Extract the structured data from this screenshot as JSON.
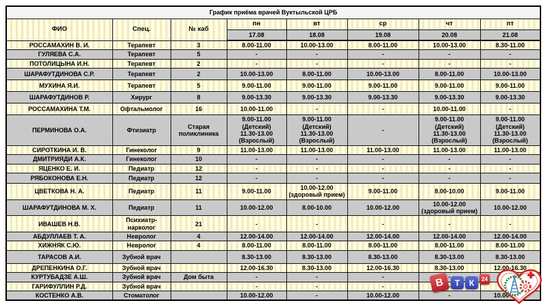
{
  "title": "График приёма врачей Вуктыльской ЦРБ",
  "table": {
    "col_headers": {
      "fio": "ФИО",
      "spec": "Спец.",
      "cab": "№ каб"
    },
    "days": [
      {
        "label": "пн",
        "date": "17.08"
      },
      {
        "label": "вт",
        "date": "18.08"
      },
      {
        "label": "ср",
        "date": "19.08"
      },
      {
        "label": "чт",
        "date": "20.08"
      },
      {
        "label": "пт",
        "date": "21.08"
      }
    ],
    "rows": [
      {
        "name": "РОССАМАХИН В. И.",
        "spec": "Терапевт",
        "cab": "3",
        "days": [
          "8.00-11.00",
          "10.00-13.00",
          "8.00-11.00",
          "10.00-13.00",
          "8.30-11.00"
        ]
      },
      {
        "name": "ГУЛЯЕВА С.А.",
        "spec": "Терапевт",
        "cab": "5",
        "days": [
          "-",
          "-",
          "-",
          "-",
          "-"
        ]
      },
      {
        "name": "ПОТОЛИЦЫНА И.Н.",
        "spec": "Терапевт",
        "cab": "2",
        "days": [
          "-",
          "-",
          "-",
          "-",
          "-"
        ]
      },
      {
        "name": "ШАРАФУТДИНОВА С.Р.",
        "spec": "Терапевт",
        "cab": "2",
        "days": [
          "10.00-13.00",
          "8.00-11.00",
          "10.00-13.00",
          "8.00-11.00",
          "10.00-13.00"
        ]
      },
      {
        "name": "МУХИНА Я.И.",
        "spec": "Терапевт",
        "cab": "5",
        "days": [
          "9.00-11.00",
          "9.00-11.00",
          "9.00-11.00",
          "9.00-11.00",
          "9.00-11.00"
        ]
      },
      {
        "name": "ШАРАФУТДИНОВ Р.",
        "spec": "Хирург",
        "cab": "8",
        "days": [
          "9.00-13.30",
          "9.00-13.30",
          "9.00-13.30",
          "9.00-13.30",
          "9.00-13.30"
        ]
      },
      {
        "name": "РОССАМАХИНА Т.М.",
        "spec": "Офтальмолог",
        "cab": "16",
        "days": [
          "10.00-11.00",
          "-",
          "-",
          "10.00-11.00",
          "-"
        ]
      },
      {
        "name": "ПЕРМИНОВА О.А.",
        "spec": "Фтизиатр",
        "cab": "Старая поликлиника",
        "days": [
          "9.00-11.00\n(Детский)\n11.30-13.00\n(Взрослый)",
          "9.00-11.00\n(Детский)\n11.30-13.00\n(Взрослый)",
          "-",
          "9.00-11.00\n(Детский)\n11.30-13.00\n(Взрослый)",
          "9.00-11.00\n(Детский)\n11.30-13.00\n(Взрослый)"
        ]
      },
      {
        "name": "СИРОТКИНА И. В.",
        "spec": "Гинеколог",
        "cab": "9",
        "days": [
          "11.00-13.00",
          "11.00-13.00",
          "11.00-13.00",
          "11.00-13.00",
          "11.00-13.00"
        ]
      },
      {
        "name": "ДМИТРИЯДИ А.К.",
        "spec": "Гинеколог",
        "cab": "10",
        "days": [
          "-",
          "-",
          "-",
          "-",
          "-"
        ]
      },
      {
        "name": "ЯЦЕНКО Е. И.",
        "spec": "Педиатр",
        "cab": "12",
        "days": [
          "-",
          "-",
          "-",
          "-",
          "-"
        ]
      },
      {
        "name": "РЯБОКОНОВА Е.Н.",
        "spec": "Педиатр",
        "cab": "12",
        "days": [
          "-",
          "-",
          "-",
          "-",
          "-"
        ]
      },
      {
        "name": "ЦВЕТКОВА Н. А.",
        "spec": "Педиатр",
        "cab": "11",
        "days": [
          "9.00-11.00",
          "10.00-12.00\n(здоровый прием)",
          "9.00-11.00",
          "8.00-10.00",
          "9.00-11.00"
        ]
      },
      {
        "name": "ШАРАФУТДИНОВА М. Х.",
        "spec": "Педиатр",
        "cab": "11",
        "days": [
          "10.00-12.00",
          "8.00-10.00",
          "10.00-12.00",
          "10.00-12.00\n(здоровый прием)",
          "10.00-12.00"
        ]
      },
      {
        "name": "ИВАШЕВ Н.В.",
        "spec": "Психиатр-нарколог",
        "cab": "21",
        "days": [
          "-",
          "-",
          "-",
          "-",
          "-"
        ]
      },
      {
        "name": "АБДУЛЛАЕВ Т. А.",
        "spec": "Невролог",
        "cab": "4",
        "days": [
          "12.00-14.00",
          "12.00-14.00",
          "12.00-14.00",
          "12.00-14.00",
          "12.00-14.00"
        ]
      },
      {
        "name": "ХИЖНЯК С.Ю.",
        "spec": "Невролог",
        "cab": "4",
        "days": [
          "8.00-11.00",
          "8.00-11.00",
          "8.00-11.00",
          "8.00-11.00",
          "8.00-11.00"
        ]
      },
      {
        "name": "ТАРАСОВ А.И.",
        "spec": "Зубной врач",
        "cab": "",
        "days": [
          "8.30-13.00",
          "8.30-13.00",
          "8.30-13.00",
          "8.30-13.00",
          "8.30-13.00"
        ]
      },
      {
        "name": "ДРЕПЕНКИНА О.Г.",
        "spec": "Зубной врач",
        "cab": "",
        "days": [
          "12.00-16.30",
          "8.30-13.00",
          "12.00-16.30",
          "8.30-13.00",
          "12.00-16.30"
        ]
      },
      {
        "name": "КУРТУБАДЗЕ А.Ш.",
        "spec": "Зубной врач",
        "cab": "Дом быта",
        "days": [
          "-",
          "-",
          "-",
          "-",
          "-"
        ]
      },
      {
        "name": "ГАРИФУЛЛИН Р.Д.",
        "spec": "Зубной врач",
        "cab": "",
        "days": [
          "-",
          "-",
          "-",
          "-",
          "-"
        ]
      },
      {
        "name": "КОСТЕНКО А.В.",
        "spec": "Стоматолог",
        "cab": "",
        "days": [
          "10.00-12.00",
          "-",
          "10.00-12.00",
          "-",
          "10.00-12.00"
        ]
      }
    ]
  },
  "colors": {
    "row_yellow": "#FFFEE0",
    "row_yellow_stripe": "#F1E9BF",
    "row_grey": "#C9C9C9",
    "title_bg": "#F5F5F5",
    "border": "#141414",
    "vtk_red": "#C8252C",
    "vtk_blue": "#3F51B5",
    "emblem_red": "#C92A2A",
    "emblem_green": "#2F8F2F",
    "emblem_blue": "#2E75B6",
    "emblem_orange": "#D0452B"
  },
  "logos": {
    "vtk": {
      "blocks": [
        "В",
        "Т",
        "К",
        "24"
      ]
    },
    "emblem_name": "vuktyl-crb-emblem"
  }
}
